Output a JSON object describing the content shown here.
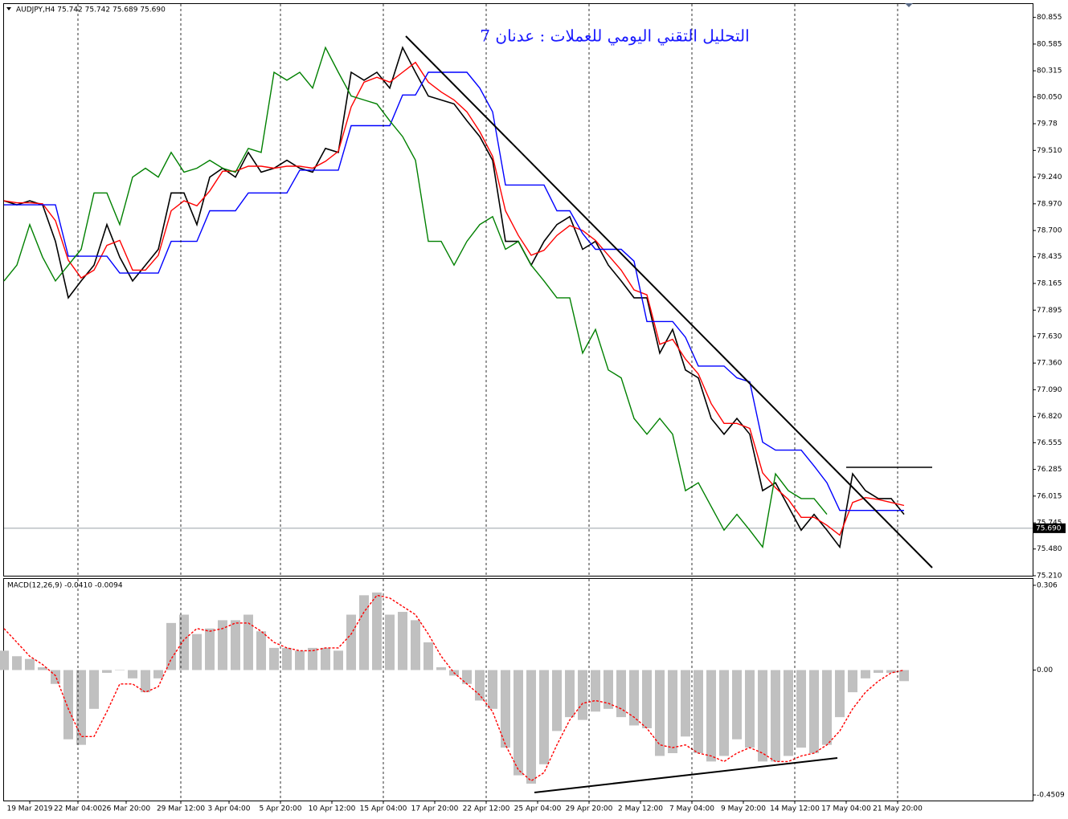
{
  "chart_data": [
    {
      "type": "line",
      "title": "AUDJPY,H4  75.742 75.742 75.689 75.690",
      "subtitle": "التحليل التقني اليومي للعملات : عدنان 7",
      "last_price": {
        "value": 75.69,
        "label": "75.690"
      },
      "x": [
        0,
        4,
        8,
        12,
        16,
        20,
        24,
        28,
        32,
        36,
        40,
        44,
        48,
        52,
        56,
        60,
        64,
        68,
        72,
        76,
        80,
        84,
        88,
        92,
        96,
        100,
        104,
        108,
        112,
        116,
        120,
        124,
        128,
        132,
        136,
        140,
        144,
        148,
        152,
        156,
        160,
        164,
        168,
        172,
        176,
        180,
        184,
        188,
        192,
        196,
        200,
        204,
        208,
        212,
        216,
        220,
        224,
        228,
        232,
        236,
        240,
        244,
        248,
        252,
        256,
        260,
        264,
        268,
        272,
        276,
        280
      ],
      "series": [
        {
          "color": "#000000",
          "values": [
            79.0,
            78.96,
            79.0,
            78.96,
            78.59,
            78.02,
            78.19,
            78.35,
            78.76,
            78.43,
            78.19,
            78.35,
            78.51,
            79.08,
            79.08,
            78.76,
            79.24,
            79.33,
            79.24,
            79.49,
            79.29,
            79.33,
            79.41,
            79.33,
            79.29,
            79.53,
            79.49,
            80.3,
            80.22,
            80.3,
            80.14,
            80.55,
            80.3,
            80.06,
            80.02,
            79.98,
            79.81,
            79.65,
            79.41,
            78.59,
            78.59,
            78.35,
            78.59,
            78.76,
            78.84,
            78.51,
            78.59,
            78.35,
            78.19,
            78.02,
            78.02,
            77.46,
            77.7,
            77.29,
            77.21,
            76.8,
            76.64,
            76.8,
            76.64,
            76.07,
            76.15,
            75.91,
            75.67,
            75.83,
            75.67,
            75.5,
            76.24,
            76.07,
            75.99,
            75.99,
            75.83
          ]
        },
        {
          "color": "#ff0000",
          "values": [
            79.0,
            78.98,
            78.98,
            78.97,
            78.8,
            78.4,
            78.22,
            78.3,
            78.55,
            78.6,
            78.3,
            78.3,
            78.45,
            78.9,
            79.0,
            78.95,
            79.1,
            79.3,
            79.3,
            79.35,
            79.35,
            79.33,
            79.35,
            79.35,
            79.33,
            79.4,
            79.5,
            79.95,
            80.2,
            80.25,
            80.2,
            80.3,
            80.4,
            80.2,
            80.1,
            80.02,
            79.9,
            79.7,
            79.45,
            78.9,
            78.65,
            78.45,
            78.5,
            78.65,
            78.75,
            78.7,
            78.6,
            78.45,
            78.3,
            78.1,
            78.05,
            77.55,
            77.6,
            77.4,
            77.25,
            76.95,
            76.75,
            76.75,
            76.7,
            76.25,
            76.1,
            75.98,
            75.8,
            75.8,
            75.72,
            75.62,
            75.95,
            76.0,
            75.98,
            75.95,
            75.92
          ]
        },
        {
          "color": "#0000ff",
          "values": [
            78.96,
            78.96,
            78.96,
            78.96,
            78.96,
            78.44,
            78.44,
            78.44,
            78.44,
            78.27,
            78.27,
            78.27,
            78.27,
            78.59,
            78.59,
            78.59,
            78.9,
            78.9,
            78.9,
            79.08,
            79.08,
            79.08,
            79.08,
            79.31,
            79.31,
            79.31,
            79.31,
            79.76,
            79.76,
            79.76,
            79.76,
            80.07,
            80.07,
            80.3,
            80.3,
            80.3,
            80.3,
            80.14,
            79.9,
            79.16,
            79.16,
            79.16,
            79.16,
            78.9,
            78.9,
            78.67,
            78.51,
            78.51,
            78.51,
            78.39,
            77.78,
            77.78,
            77.78,
            77.62,
            77.33,
            77.33,
            77.33,
            77.21,
            77.17,
            76.56,
            76.48,
            76.48,
            76.48,
            76.32,
            76.15,
            75.87,
            75.87,
            75.87,
            75.87,
            75.87,
            75.87
          ]
        },
        {
          "color": "#008000",
          "values": [
            78.19,
            78.35,
            78.76,
            78.43,
            78.19,
            78.35,
            78.51,
            79.08,
            79.08,
            78.76,
            79.24,
            79.33,
            79.24,
            79.49,
            79.29,
            79.33,
            79.41,
            79.33,
            79.29,
            79.53,
            79.49,
            80.3,
            80.22,
            80.3,
            80.14,
            80.55,
            80.3,
            80.06,
            80.02,
            79.98,
            79.81,
            79.65,
            79.41,
            78.59,
            78.59,
            78.35,
            78.59,
            78.76,
            78.84,
            78.51,
            78.59,
            78.35,
            78.19,
            78.02,
            78.02,
            77.46,
            77.7,
            77.29,
            77.21,
            76.8,
            76.64,
            76.8,
            76.64,
            76.07,
            76.15,
            75.91,
            75.67,
            75.83,
            75.67,
            75.5,
            76.24,
            76.07,
            75.99,
            75.99,
            75.83,
            null,
            null,
            null,
            null,
            null,
            null
          ]
        }
      ],
      "xlim": [
        0,
        320
      ],
      "ylim": [
        75.21,
        80.99
      ],
      "yticks": [
        80.855,
        80.585,
        80.315,
        {
          "value": 80.05,
          "label": "80.050"
        },
        79.78,
        {
          "value": 79.51,
          "label": "79.510"
        },
        {
          "value": 79.24,
          "label": "79.240"
        },
        {
          "value": 78.97,
          "label": "78.970"
        },
        {
          "value": 78.7,
          "label": "78.700"
        },
        78.435,
        78.165,
        77.895,
        {
          "value": 77.63,
          "label": "77.630"
        },
        {
          "value": 77.36,
          "label": "77.360"
        },
        {
          "value": 77.09,
          "label": "77.090"
        },
        {
          "value": 76.82,
          "label": "76.820"
        },
        76.555,
        76.285,
        76.015,
        75.745,
        {
          "value": 75.48,
          "label": "75.480"
        },
        {
          "value": 75.21,
          "label": "75.210"
        }
      ]
    },
    {
      "type": "macd",
      "title": "MACD(12,26,9) -0.0410 -0.0094",
      "x": [
        0,
        4,
        8,
        12,
        16,
        20,
        24,
        28,
        32,
        36,
        40,
        44,
        48,
        52,
        56,
        60,
        64,
        68,
        72,
        76,
        80,
        84,
        88,
        92,
        96,
        100,
        104,
        108,
        112,
        116,
        120,
        124,
        128,
        132,
        136,
        140,
        144,
        148,
        152,
        156,
        160,
        164,
        168,
        172,
        176,
        180,
        184,
        188,
        192,
        196,
        200,
        204,
        208,
        212,
        216,
        220,
        224,
        228,
        232,
        236,
        240,
        244,
        248,
        252,
        256,
        260,
        264,
        268,
        272,
        276,
        280
      ],
      "series": [
        {
          "type": "bar",
          "color": "#c0c0c0",
          "values": [
            0.07,
            0.05,
            0.04,
            0.01,
            -0.05,
            -0.25,
            -0.27,
            -0.14,
            -0.01,
            0.0,
            -0.03,
            -0.08,
            -0.03,
            0.17,
            0.2,
            0.13,
            0.15,
            0.18,
            0.18,
            0.2,
            0.14,
            0.08,
            0.08,
            0.07,
            0.08,
            0.08,
            0.07,
            0.2,
            0.27,
            0.28,
            0.2,
            0.21,
            0.18,
            0.1,
            0.01,
            -0.02,
            -0.05,
            -0.11,
            -0.14,
            -0.28,
            -0.38,
            -0.41,
            -0.34,
            -0.22,
            -0.17,
            -0.18,
            -0.15,
            -0.14,
            -0.17,
            -0.2,
            -0.21,
            -0.31,
            -0.3,
            -0.24,
            -0.3,
            -0.33,
            -0.31,
            -0.25,
            -0.28,
            -0.33,
            -0.33,
            -0.31,
            -0.28,
            -0.3,
            -0.27,
            -0.17,
            -0.08,
            -0.03,
            -0.01,
            -0.01,
            -0.04
          ]
        },
        {
          "type": "line",
          "dash": true,
          "color": "#ff0000",
          "values": [
            0.15,
            0.1,
            0.05,
            0.02,
            -0.02,
            -0.14,
            -0.24,
            -0.24,
            -0.15,
            -0.05,
            -0.05,
            -0.08,
            -0.06,
            0.04,
            0.11,
            0.15,
            0.14,
            0.15,
            0.17,
            0.17,
            0.14,
            0.1,
            0.08,
            0.07,
            0.07,
            0.08,
            0.08,
            0.13,
            0.21,
            0.27,
            0.26,
            0.23,
            0.2,
            0.13,
            0.05,
            -0.01,
            -0.05,
            -0.09,
            -0.15,
            -0.27,
            -0.36,
            -0.4,
            -0.37,
            -0.27,
            -0.18,
            -0.12,
            -0.11,
            -0.12,
            -0.14,
            -0.17,
            -0.21,
            -0.27,
            -0.28,
            -0.27,
            -0.3,
            -0.31,
            -0.33,
            -0.3,
            -0.28,
            -0.3,
            -0.33,
            -0.33,
            -0.31,
            -0.3,
            -0.27,
            -0.22,
            -0.14,
            -0.08,
            -0.04,
            -0.01,
            0.0
          ]
        }
      ],
      "xlim": [
        0,
        320
      ],
      "ylim": [
        -0.471,
        0.329
      ],
      "yticks": [
        0.306,
        {
          "value": 0,
          "label": "0.00"
        },
        -0.4509
      ],
      "xticks": [
        {
          "value": 8,
          "label": "19 Mar 2019"
        },
        {
          "value": 23,
          "label": "22 Mar 04:00"
        },
        {
          "value": 38,
          "label": "26 Mar 20:00"
        },
        {
          "value": 55,
          "label": "29 Mar 12:00"
        },
        {
          "value": 70,
          "label": "3 Apr 04:00"
        },
        {
          "value": 86,
          "label": "5 Apr 20:00"
        },
        {
          "value": 102,
          "label": "10 Apr 12:00"
        },
        {
          "value": 118,
          "label": "15 Apr 04:00"
        },
        {
          "value": 134,
          "label": "17 Apr 20:00"
        },
        {
          "value": 150,
          "label": "22 Apr 12:00"
        },
        {
          "value": 166,
          "label": "25 Apr 04:00"
        },
        {
          "value": 182,
          "label": "29 Apr 20:00"
        },
        {
          "value": 198,
          "label": "2 May 12:00"
        },
        {
          "value": 214,
          "label": "7 May 04:00"
        },
        {
          "value": 230,
          "label": "9 May 20:00"
        },
        {
          "value": 246,
          "label": "14 May 12:00"
        },
        {
          "value": 262,
          "label": "17 May 04:00"
        },
        {
          "value": 278,
          "label": "21 May 20:00"
        }
      ]
    }
  ]
}
